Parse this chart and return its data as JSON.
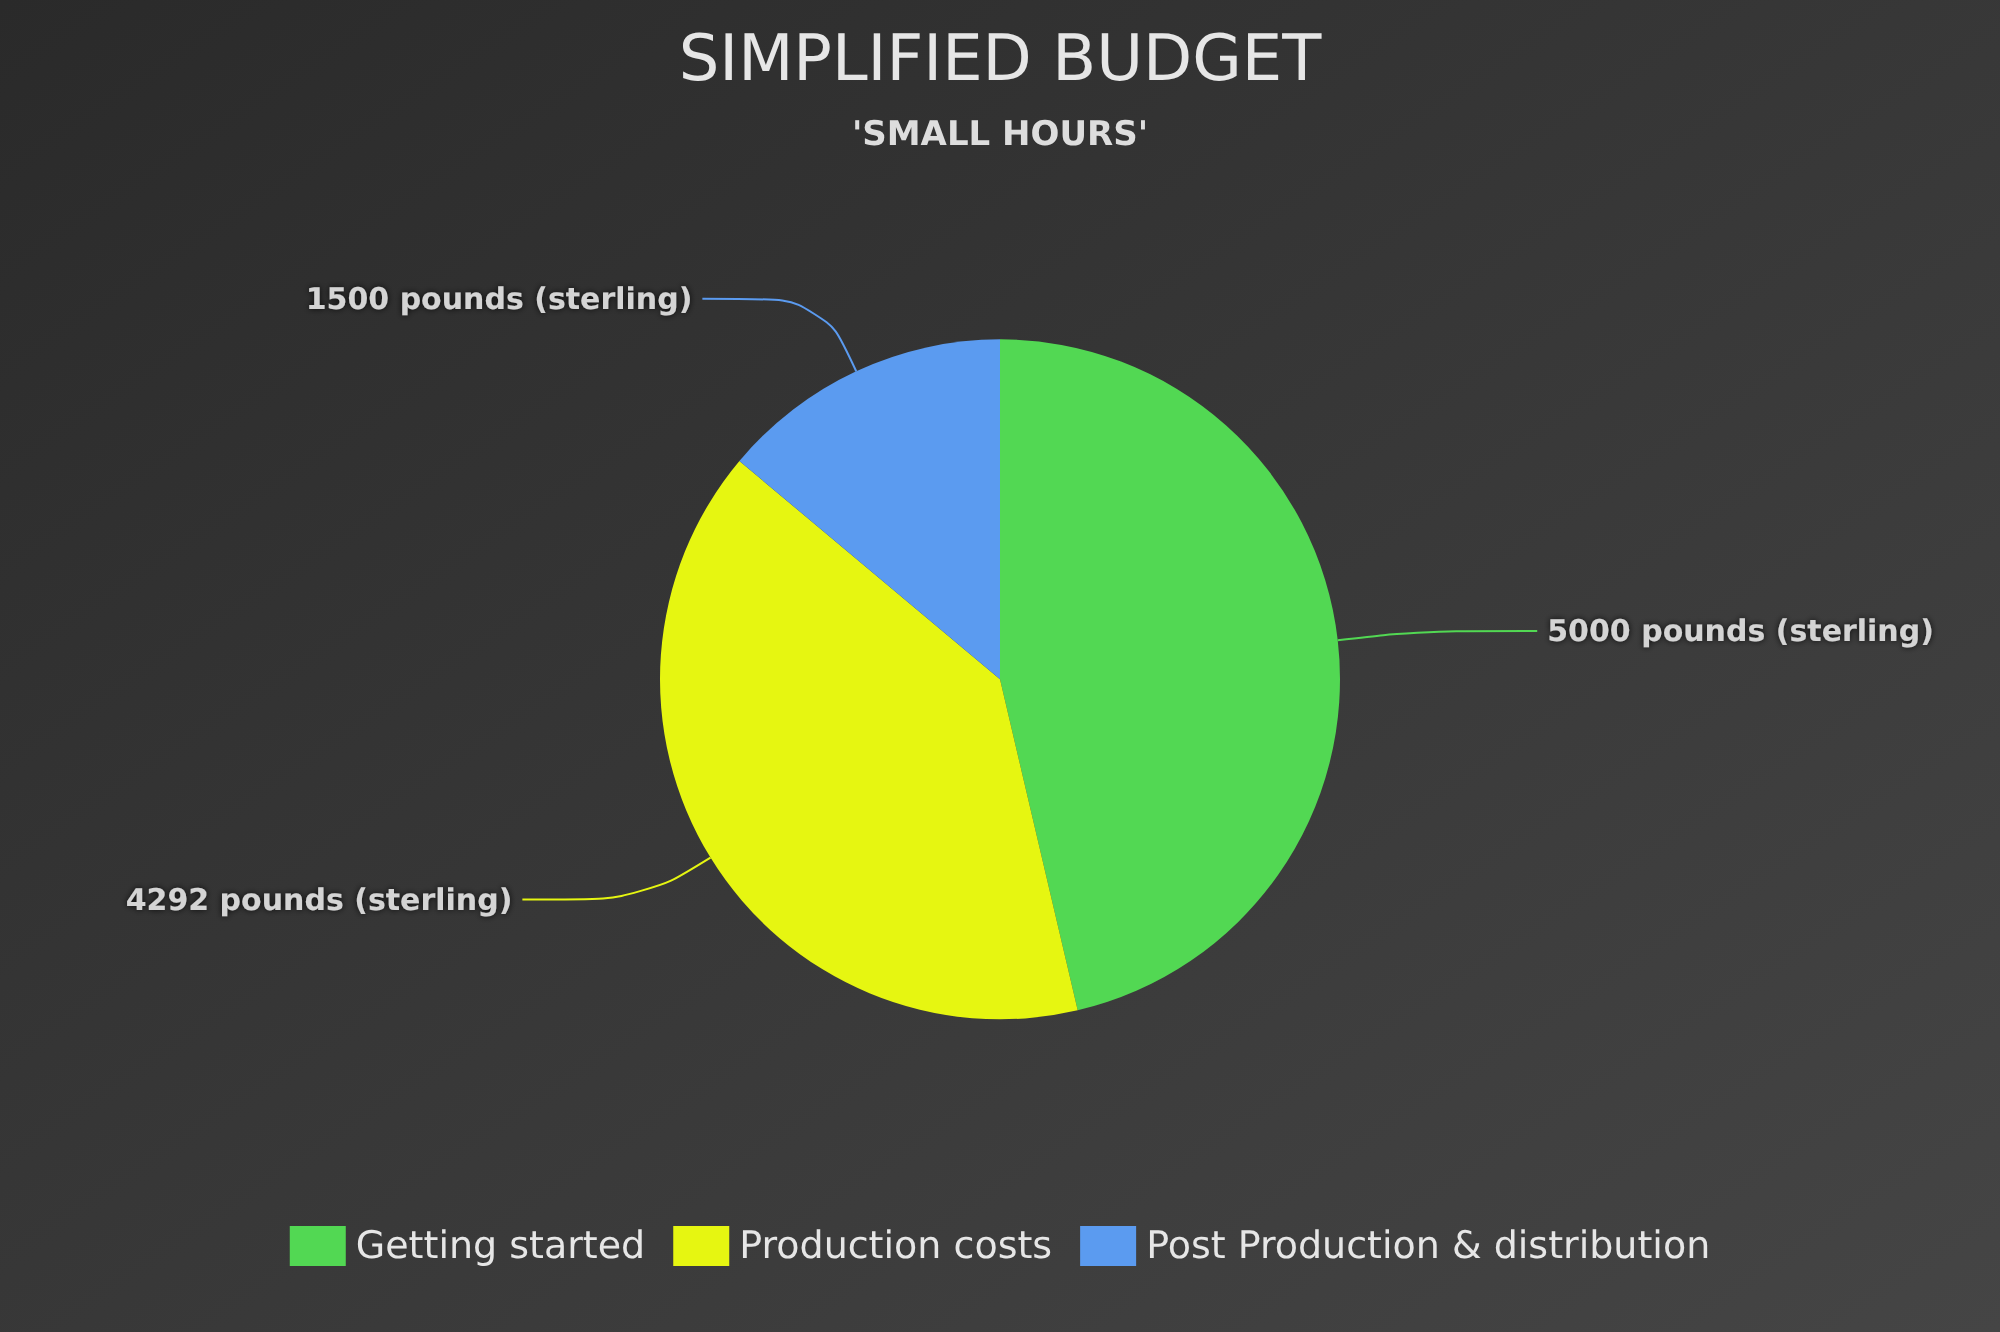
{
  "chart_data": {
    "type": "pie",
    "title": "SIMPLIFIED BUDGET",
    "subtitle": "'SMALL HOURS'",
    "categories": [
      "Getting started",
      "Production costs",
      "Post Production & distribution"
    ],
    "values": [
      5000,
      4292,
      1500
    ],
    "colors": [
      "#52d853",
      "#e6f611",
      "#5b9bf0"
    ],
    "value_labels": [
      "5000 pounds (sterling)",
      "4292 pounds (sterling)",
      "1500 pounds (sterling)"
    ],
    "legend": "bottom"
  }
}
